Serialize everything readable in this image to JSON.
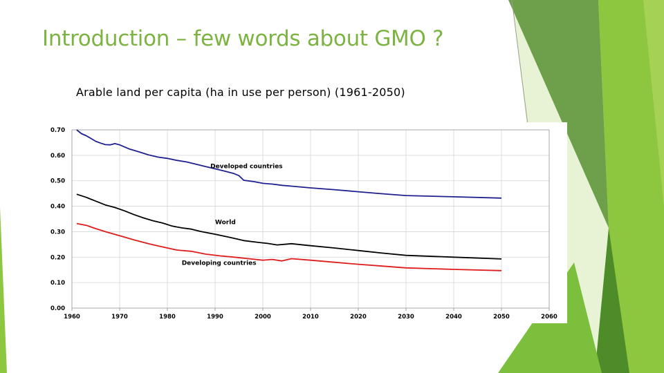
{
  "slide": {
    "title": "Introduction – few words about GMO ?",
    "accent_color": "#8dc63f"
  },
  "chart_data": {
    "type": "line",
    "title": "Arable land per capita (ha in use per person) (1961-2050)",
    "xlabel": "",
    "ylabel": "",
    "xlim": [
      1960,
      2060
    ],
    "ylim": [
      0.0,
      0.7
    ],
    "x_ticks": [
      "1960",
      "1970",
      "1980",
      "1990",
      "2000",
      "2010",
      "2020",
      "2030",
      "2040",
      "2050",
      "2060"
    ],
    "y_ticks": [
      "0.00",
      "0.10",
      "0.20",
      "0.30",
      "0.40",
      "0.50",
      "0.60",
      "0.70"
    ],
    "grid": true,
    "series": [
      {
        "name": "Developed countries",
        "color": "#1f1f8f",
        "x": [
          1961,
          1962,
          1963,
          1964,
          1965,
          1966,
          1967,
          1968,
          1969,
          1970,
          1971,
          1972,
          1974,
          1976,
          1978,
          1980,
          1982,
          1984,
          1986,
          1988,
          1990,
          1992,
          1994,
          1995,
          1996,
          1998,
          2000,
          2002,
          2004,
          2006,
          2010,
          2015,
          2020,
          2025,
          2030,
          2040,
          2050
        ],
        "values": [
          0.7,
          0.685,
          0.677,
          0.666,
          0.655,
          0.648,
          0.642,
          0.641,
          0.646,
          0.641,
          0.633,
          0.625,
          0.614,
          0.602,
          0.593,
          0.588,
          0.58,
          0.574,
          0.565,
          0.556,
          0.547,
          0.538,
          0.528,
          0.52,
          0.502,
          0.497,
          0.49,
          0.487,
          0.482,
          0.479,
          0.472,
          0.465,
          0.457,
          0.449,
          0.442,
          0.437,
          0.432
        ]
      },
      {
        "name": "World",
        "color": "#000000",
        "x": [
          1961,
          1963,
          1965,
          1967,
          1969,
          1971,
          1973,
          1975,
          1977,
          1979,
          1981,
          1983,
          1985,
          1987,
          1990,
          1993,
          1996,
          1999,
          2001,
          2003,
          2006,
          2010,
          2015,
          2020,
          2025,
          2030,
          2040,
          2050
        ],
        "values": [
          0.447,
          0.435,
          0.42,
          0.405,
          0.395,
          0.382,
          0.367,
          0.354,
          0.343,
          0.334,
          0.322,
          0.315,
          0.31,
          0.301,
          0.29,
          0.278,
          0.265,
          0.258,
          0.254,
          0.248,
          0.253,
          0.245,
          0.236,
          0.226,
          0.216,
          0.207,
          0.2,
          0.193
        ]
      },
      {
        "name": "Developing countries",
        "color": "#e01b1b",
        "x": [
          1961,
          1963,
          1965,
          1967,
          1970,
          1973,
          1976,
          1979,
          1982,
          1985,
          1988,
          1991,
          1994,
          1997,
          2000,
          2002,
          2004,
          2006,
          2010,
          2015,
          2020,
          2025,
          2030,
          2040,
          2050
        ],
        "values": [
          0.332,
          0.325,
          0.312,
          0.3,
          0.284,
          0.268,
          0.253,
          0.24,
          0.228,
          0.223,
          0.212,
          0.205,
          0.2,
          0.194,
          0.188,
          0.191,
          0.185,
          0.194,
          0.188,
          0.18,
          0.172,
          0.165,
          0.158,
          0.152,
          0.147
        ]
      }
    ],
    "annotations": [
      {
        "text": "Developed countries",
        "x": 1989,
        "y": 0.55
      },
      {
        "text": "World",
        "x": 1990,
        "y": 0.33
      },
      {
        "text": "Developing countries",
        "x": 1983,
        "y": 0.17
      }
    ]
  }
}
